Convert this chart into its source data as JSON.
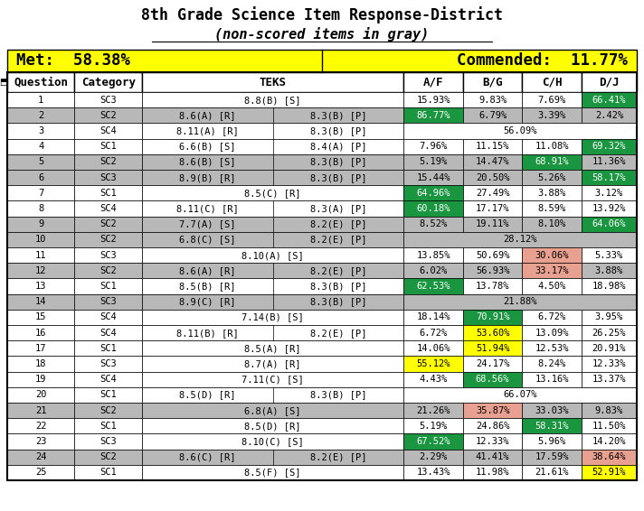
{
  "title1": "8th Grade Science Item Response-District",
  "title2": "(non-scored items in gray)",
  "met_text": "Met:  58.38%",
  "commended_text": "Commended:  11.77%",
  "col_headers": [
    "Question",
    "Category",
    "TEKS",
    "A/F",
    "B/G",
    "C/H",
    "D/J"
  ],
  "rows": [
    {
      "q": 1,
      "cat": "SC3",
      "teks": "8.8(B) [S]",
      "af": "15.93%",
      "bg": "9.83%",
      "ch": "7.69%",
      "dj": "66.41%",
      "af_c": null,
      "bg_c": null,
      "ch_c": null,
      "dj_c": "#1a9641",
      "gray": false
    },
    {
      "q": 2,
      "cat": "SC2",
      "teks": "8.6(A) [R]|8.3(B) [P]",
      "af": "86.77%",
      "bg": "6.79%",
      "ch": "3.39%",
      "dj": "2.42%",
      "af_c": "#1a9641",
      "bg_c": null,
      "ch_c": null,
      "dj_c": null,
      "gray": true
    },
    {
      "q": 3,
      "cat": "SC4",
      "teks": "8.11(A) [R]|8.3(B) [P]",
      "af": null,
      "bg": null,
      "ch": null,
      "dj": null,
      "af_c": null,
      "bg_c": null,
      "ch_c": null,
      "dj_c": null,
      "gray": false,
      "span": "56.09%"
    },
    {
      "q": 4,
      "cat": "SC1",
      "teks": "6.6(B) [S]|8.4(A) [P]",
      "af": "7.96%",
      "bg": "11.15%",
      "ch": "11.08%",
      "dj": "69.32%",
      "af_c": null,
      "bg_c": null,
      "ch_c": null,
      "dj_c": "#1a9641",
      "gray": false
    },
    {
      "q": 5,
      "cat": "SC2",
      "teks": "8.6(B) [S]|8.3(B) [P]",
      "af": "5.19%",
      "bg": "14.47%",
      "ch": "68.91%",
      "dj": "11.36%",
      "af_c": null,
      "bg_c": null,
      "ch_c": "#1a9641",
      "dj_c": null,
      "gray": true
    },
    {
      "q": 6,
      "cat": "SC3",
      "teks": "8.9(B) [R]|8.3(B) [P]",
      "af": "15.44%",
      "bg": "20.50%",
      "ch": "5.26%",
      "dj": "58.17%",
      "af_c": null,
      "bg_c": null,
      "ch_c": null,
      "dj_c": "#1a9641",
      "gray": true
    },
    {
      "q": 7,
      "cat": "SC1",
      "teks": "8.5(C) [R]",
      "af": "64.96%",
      "bg": "27.49%",
      "ch": "3.88%",
      "dj": "3.12%",
      "af_c": "#1a9641",
      "bg_c": null,
      "ch_c": null,
      "dj_c": null,
      "gray": false
    },
    {
      "q": 8,
      "cat": "SC4",
      "teks": "8.11(C) [R]|8.3(A) [P]",
      "af": "60.18%",
      "bg": "17.17%",
      "ch": "8.59%",
      "dj": "13.92%",
      "af_c": "#1a9641",
      "bg_c": null,
      "ch_c": null,
      "dj_c": null,
      "gray": false
    },
    {
      "q": 9,
      "cat": "SC2",
      "teks": "7.7(A) [S]|8.2(E) [P]",
      "af": "8.52%",
      "bg": "19.11%",
      "ch": "8.10%",
      "dj": "64.06%",
      "af_c": null,
      "bg_c": null,
      "ch_c": null,
      "dj_c": "#1a9641",
      "gray": true
    },
    {
      "q": 10,
      "cat": "SC2",
      "teks": "6.8(C) [S]|8.2(E) [P]",
      "af": null,
      "bg": null,
      "ch": null,
      "dj": null,
      "af_c": null,
      "bg_c": null,
      "ch_c": null,
      "dj_c": null,
      "gray": true,
      "span": "28.12%"
    },
    {
      "q": 11,
      "cat": "SC3",
      "teks": "8.10(A) [S]",
      "af": "13.85%",
      "bg": "50.69%",
      "ch": "30.06%",
      "dj": "5.33%",
      "af_c": null,
      "bg_c": null,
      "ch_c": "#e8a090",
      "dj_c": null,
      "gray": false
    },
    {
      "q": 12,
      "cat": "SC2",
      "teks": "8.6(A) [R]|8.2(E) [P]",
      "af": "6.02%",
      "bg": "56.93%",
      "ch": "33.17%",
      "dj": "3.88%",
      "af_c": null,
      "bg_c": null,
      "ch_c": "#e8a090",
      "dj_c": null,
      "gray": true
    },
    {
      "q": 13,
      "cat": "SC1",
      "teks": "8.5(B) [R]|8.3(B) [P]",
      "af": "62.53%",
      "bg": "13.78%",
      "ch": "4.50%",
      "dj": "18.98%",
      "af_c": "#1a9641",
      "bg_c": null,
      "ch_c": null,
      "dj_c": null,
      "gray": false
    },
    {
      "q": 14,
      "cat": "SC3",
      "teks": "8.9(C) [R]|8.3(B) [P]",
      "af": null,
      "bg": null,
      "ch": null,
      "dj": null,
      "af_c": null,
      "bg_c": null,
      "ch_c": null,
      "dj_c": null,
      "gray": true,
      "span": "21.88%"
    },
    {
      "q": 15,
      "cat": "SC4",
      "teks": "7.14(B) [S]",
      "af": "18.14%",
      "bg": "70.91%",
      "ch": "6.72%",
      "dj": "3.95%",
      "af_c": null,
      "bg_c": "#1a9641",
      "ch_c": null,
      "dj_c": null,
      "gray": false
    },
    {
      "q": 16,
      "cat": "SC4",
      "teks": "8.11(B) [R]|8.2(E) [P]",
      "af": "6.72%",
      "bg": "53.60%",
      "ch": "13.09%",
      "dj": "26.25%",
      "af_c": null,
      "bg_c": "#ffff00",
      "ch_c": null,
      "dj_c": null,
      "gray": false
    },
    {
      "q": 17,
      "cat": "SC1",
      "teks": "8.5(A) [R]",
      "af": "14.06%",
      "bg": "51.94%",
      "ch": "12.53%",
      "dj": "20.91%",
      "af_c": null,
      "bg_c": "#ffff00",
      "ch_c": null,
      "dj_c": null,
      "gray": false
    },
    {
      "q": 18,
      "cat": "SC3",
      "teks": "8.7(A) [R]",
      "af": "55.12%",
      "bg": "24.17%",
      "ch": "8.24%",
      "dj": "12.33%",
      "af_c": "#ffff00",
      "bg_c": null,
      "ch_c": null,
      "dj_c": null,
      "gray": false
    },
    {
      "q": 19,
      "cat": "SC4",
      "teks": "7.11(C) [S]",
      "af": "4.43%",
      "bg": "68.56%",
      "ch": "13.16%",
      "dj": "13.37%",
      "af_c": null,
      "bg_c": "#1a9641",
      "ch_c": null,
      "dj_c": null,
      "gray": false
    },
    {
      "q": 20,
      "cat": "SC1",
      "teks": "8.5(D) [R]|8.3(B) [P]",
      "af": null,
      "bg": null,
      "ch": null,
      "dj": null,
      "af_c": null,
      "bg_c": null,
      "ch_c": null,
      "dj_c": null,
      "gray": false,
      "span": "66.07%"
    },
    {
      "q": 21,
      "cat": "SC2",
      "teks": "6.8(A) [S]",
      "af": "21.26%",
      "bg": "35.87%",
      "ch": "33.03%",
      "dj": "9.83%",
      "af_c": null,
      "bg_c": "#e8a090",
      "ch_c": null,
      "dj_c": null,
      "gray": true
    },
    {
      "q": 22,
      "cat": "SC1",
      "teks": "8.5(D) [R]",
      "af": "5.19%",
      "bg": "24.86%",
      "ch": "58.31%",
      "dj": "11.50%",
      "af_c": null,
      "bg_c": null,
      "ch_c": "#1a9641",
      "dj_c": null,
      "gray": false
    },
    {
      "q": 23,
      "cat": "SC3",
      "teks": "8.10(C) [S]",
      "af": "67.52%",
      "bg": "12.33%",
      "ch": "5.96%",
      "dj": "14.20%",
      "af_c": "#1a9641",
      "bg_c": null,
      "ch_c": null,
      "dj_c": null,
      "gray": false
    },
    {
      "q": 24,
      "cat": "SC2",
      "teks": "8.6(C) [R]|8.2(E) [P]",
      "af": "2.29%",
      "bg": "41.41%",
      "ch": "17.59%",
      "dj": "38.64%",
      "af_c": null,
      "bg_c": null,
      "ch_c": null,
      "dj_c": "#e8a090",
      "gray": true
    },
    {
      "q": 25,
      "cat": "SC1",
      "teks": "8.5(F) [S]",
      "af": "13.43%",
      "bg": "11.98%",
      "ch": "21.61%",
      "dj": "52.91%",
      "af_c": null,
      "bg_c": null,
      "ch_c": null,
      "dj_c": "#ffff00",
      "gray": false
    }
  ],
  "bg_yellow": "#ffff00",
  "bg_green": "#1a9641",
  "bg_pink": "#e8a090",
  "bg_gray_row": "#b8b8b8",
  "bg_white": "#ffffff",
  "met_bg": "#ffff00",
  "border_color": "#000000"
}
